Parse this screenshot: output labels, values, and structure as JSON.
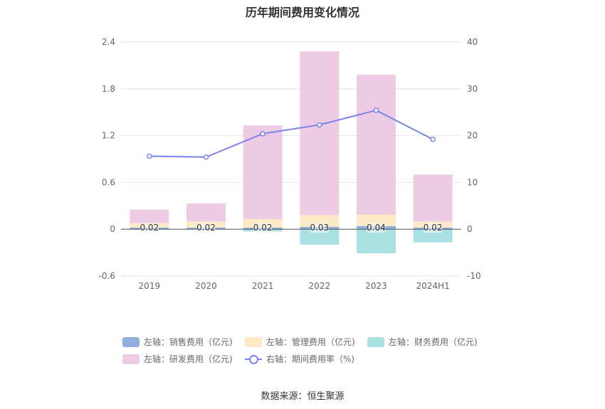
{
  "title": "历年期间费用变化情况",
  "source": "数据来源：恒生聚源",
  "colors": {
    "sales": "#8fb0dc",
    "admin": "#fde3b3",
    "finance": "#8dd7da",
    "rd": "#e8b9db",
    "rate": "#7b83eb"
  },
  "legend": [
    {
      "key": "sales",
      "label": "左轴：销售费用（亿元)"
    },
    {
      "key": "admin",
      "label": "左轴：管理费用（亿元)"
    },
    {
      "key": "finance",
      "label": "左轴：财务费用（亿元)"
    },
    {
      "key": "rd",
      "label": "左轴：研发费用（亿元)"
    },
    {
      "key": "rate",
      "label": "右轴：期间费用率（%)"
    }
  ],
  "chart_data": {
    "type": "bar",
    "title": "历年期间费用变化情况",
    "categories": [
      "2019",
      "2020",
      "2021",
      "2022",
      "2023",
      "2024H1"
    ],
    "series": [
      {
        "name": "左轴：销售费用（亿元)",
        "key": "sales",
        "axis": "left",
        "stack": true,
        "values": [
          0.02,
          0.02,
          0.02,
          0.03,
          0.04,
          0.02
        ]
      },
      {
        "name": "左轴：管理费用（亿元)",
        "key": "admin",
        "axis": "left",
        "stack": true,
        "values": [
          0.06,
          0.08,
          0.11,
          0.15,
          0.15,
          0.08
        ]
      },
      {
        "name": "左轴：财务费用（亿元)",
        "key": "finance",
        "axis": "left",
        "stack": true,
        "values": [
          0.0,
          0.0,
          -0.03,
          -0.2,
          -0.31,
          -0.17
        ]
      },
      {
        "name": "左轴：研发费用（亿元)",
        "key": "rd",
        "axis": "left",
        "stack": true,
        "values": [
          0.17,
          0.23,
          1.2,
          2.1,
          1.79,
          0.6
        ]
      },
      {
        "name": "右轴：期间费用率（%)",
        "key": "rate",
        "axis": "right",
        "type": "line",
        "values": [
          15.6,
          15.4,
          20.4,
          22.3,
          25.4,
          19.2
        ]
      }
    ],
    "data_labels": [
      "0.02",
      "0.02",
      "0.02",
      "0.03",
      "0.04",
      "0.02"
    ],
    "left_axis": {
      "min": -0.6,
      "max": 2.4,
      "ticks": [
        "2.4",
        "1.8",
        "1.2",
        "0.6",
        "0",
        "-0.6"
      ],
      "tick_values": [
        2.4,
        1.8,
        1.2,
        0.6,
        0,
        -0.6
      ]
    },
    "right_axis": {
      "min": -10,
      "max": 40,
      "ticks": [
        "40",
        "30",
        "20",
        "10",
        "0",
        "-10"
      ],
      "tick_values": [
        40,
        30,
        20,
        10,
        0,
        -10
      ]
    },
    "grid": true,
    "legend_position": "bottom"
  }
}
